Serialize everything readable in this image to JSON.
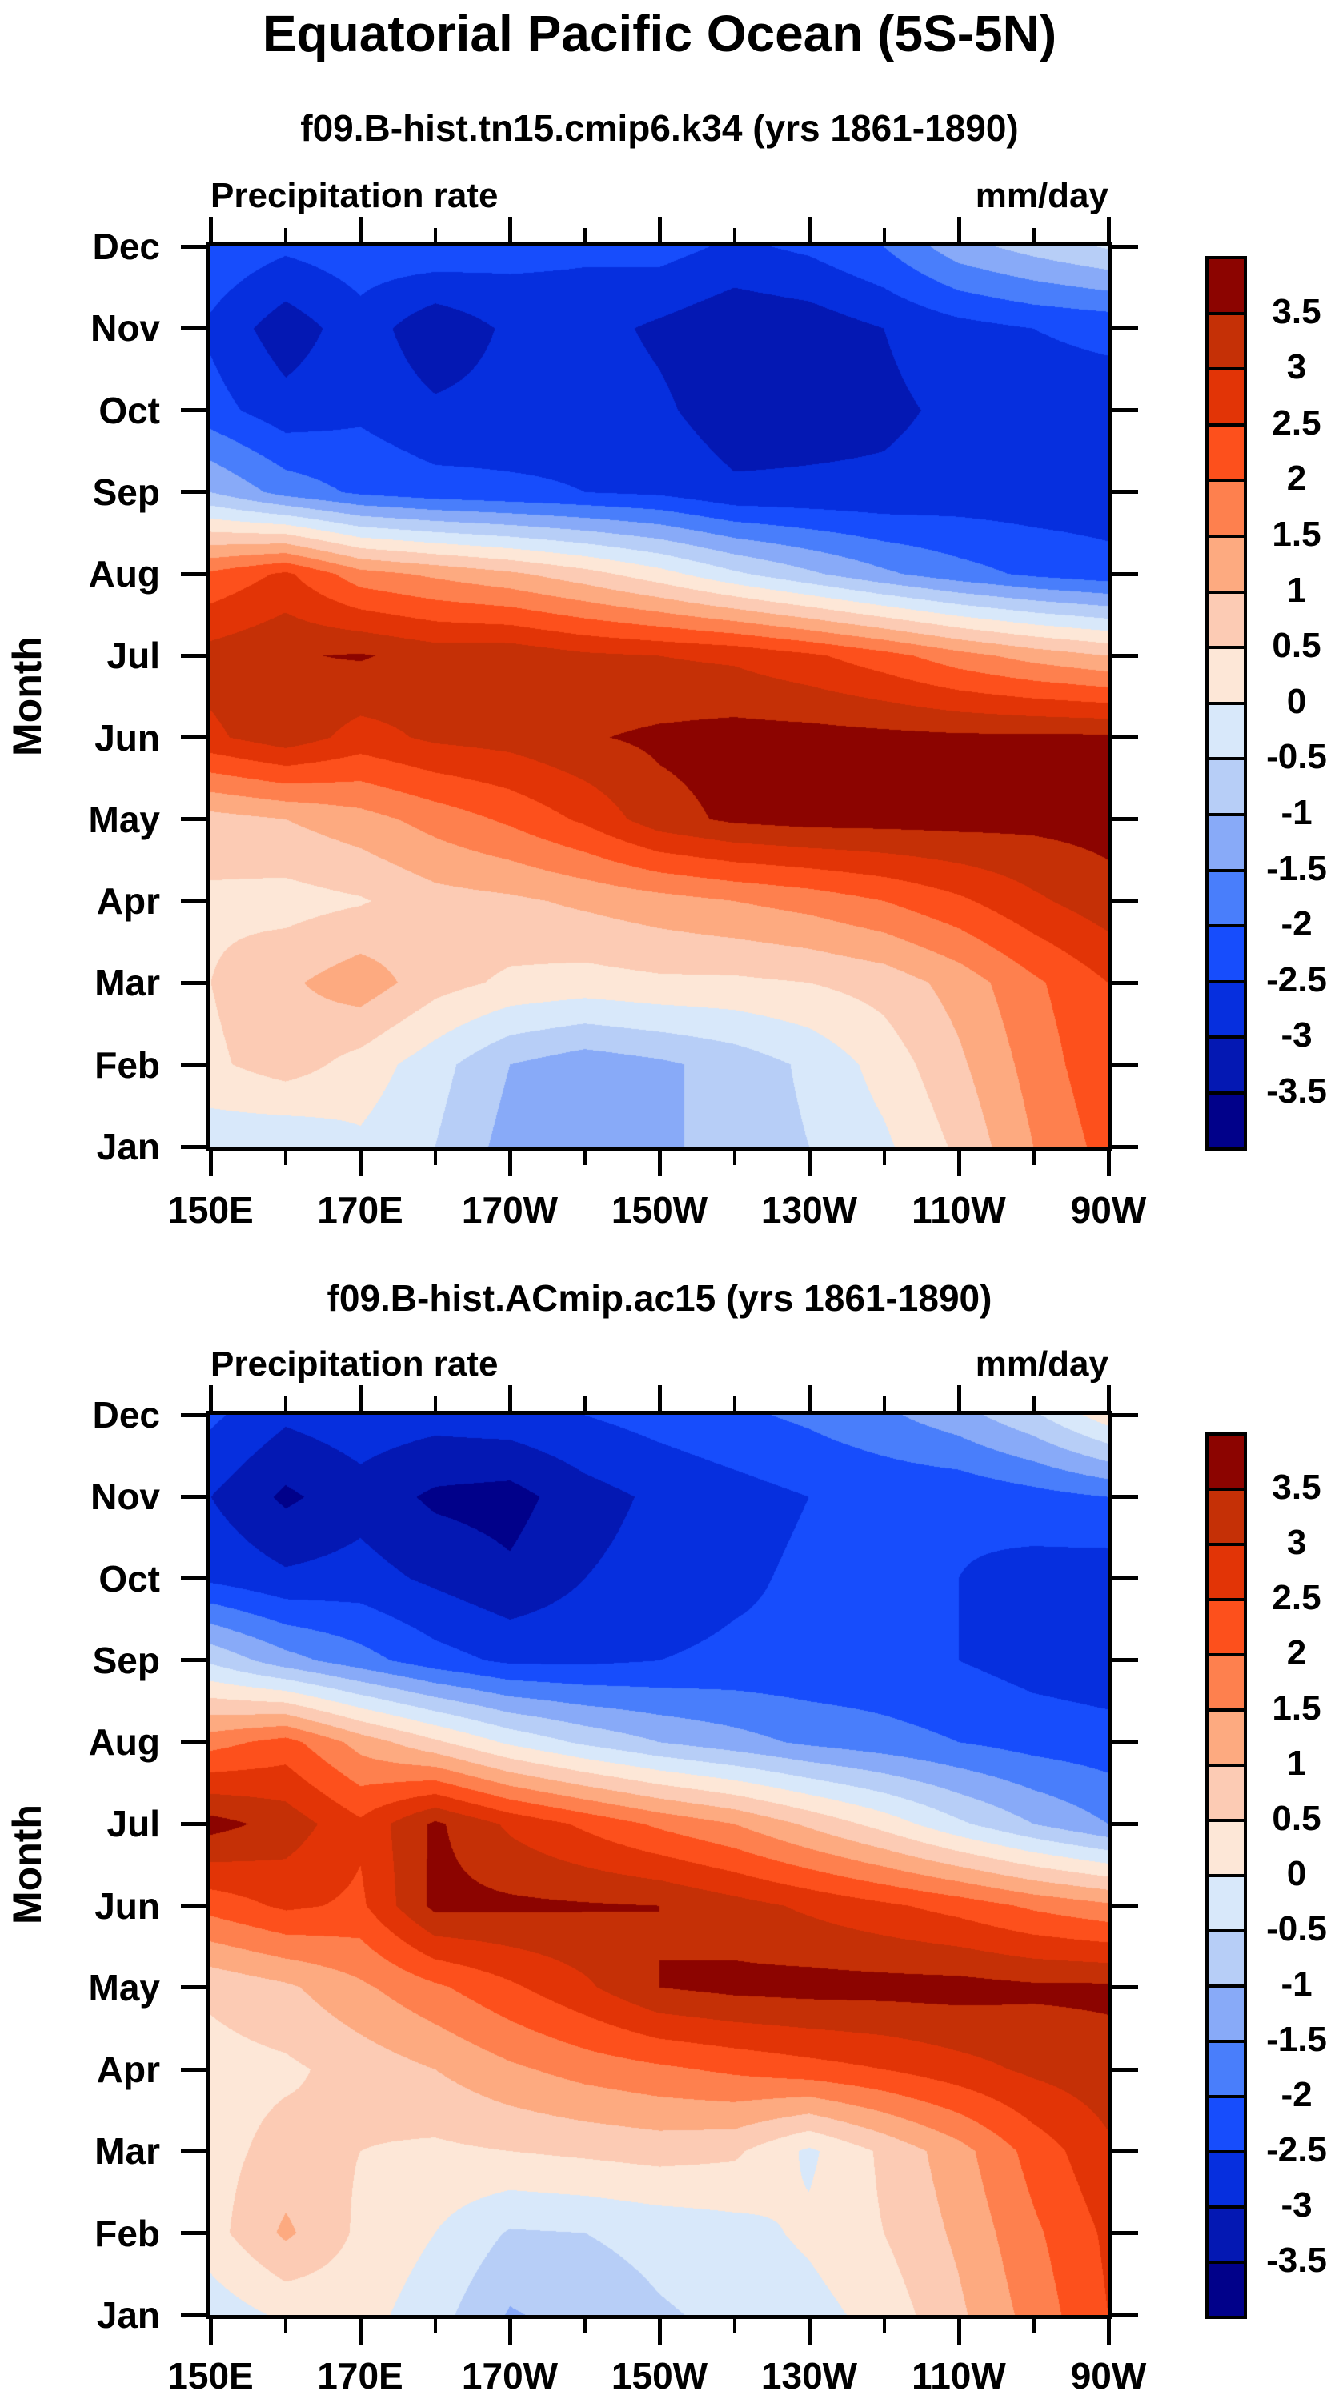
{
  "header": {
    "main_title": "Equatorial Pacific Ocean (5S-5N)"
  },
  "panels": [
    {
      "title": "f09.B-hist.tn15.cmip6.k34 (yrs 1861-1890)",
      "left_label": "Precipitation rate",
      "right_label": "mm/day",
      "y_axis_label": "Month",
      "x_tick_labels": [
        "150E",
        "170E",
        "170W",
        "150W",
        "130W",
        "110W",
        "90W"
      ],
      "y_tick_labels": [
        "Dec",
        "Nov",
        "Oct",
        "Sep",
        "Aug",
        "Jul",
        "Jun",
        "May",
        "Apr",
        "Mar",
        "Feb",
        "Jan"
      ]
    },
    {
      "title": "f09.B-hist.ACmip.ac15 (yrs 1861-1890)",
      "left_label": "Precipitation rate",
      "right_label": "mm/day",
      "y_axis_label": "Month",
      "x_tick_labels": [
        "150E",
        "170E",
        "170W",
        "150W",
        "130W",
        "110W",
        "90W"
      ],
      "y_tick_labels": [
        "Dec",
        "Nov",
        "Oct",
        "Sep",
        "Aug",
        "Jul",
        "Jun",
        "May",
        "Apr",
        "Mar",
        "Feb",
        "Jan"
      ]
    }
  ],
  "colorbar": {
    "labels": [
      "3.5",
      "3",
      "2.5",
      "2",
      "1.5",
      "1",
      "0.5",
      "0",
      "-0.5",
      "-1",
      "-1.5",
      "-2",
      "-2.5",
      "-3",
      "-3.5"
    ],
    "colors_top_to_bottom": [
      "#8c0400",
      "#c53006",
      "#e23406",
      "#fd501c",
      "#fe804e",
      "#fdaa80",
      "#fccbb4",
      "#fde7d7",
      "#d8e8fa",
      "#b7cef7",
      "#88aaf8",
      "#497efb",
      "#174dfc",
      "#062fde",
      "#0418b3",
      "#01018a"
    ],
    "outline_color": "#000000"
  },
  "chart_data": [
    {
      "type": "heatmap",
      "title": "f09.B-hist.tn15.cmip6.k34 (yrs 1861-1890)",
      "variable": "Precipitation rate",
      "units": "mm/day",
      "xlabel_ticks": [
        "150E",
        "170E",
        "170W",
        "150W",
        "130W",
        "110W",
        "90W"
      ],
      "x_grid_lons": [
        "150E",
        "160E",
        "170E",
        "180",
        "170W",
        "160W",
        "150W",
        "140W",
        "130W",
        "120W",
        "110W",
        "100W",
        "90W"
      ],
      "y_categories_top_to_bottom": [
        "Dec",
        "Nov",
        "Oct",
        "Sep",
        "Aug",
        "Jul",
        "Jun",
        "May",
        "Apr",
        "Mar",
        "Feb",
        "Jan"
      ],
      "contour_levels": [
        -3.5,
        -3,
        -2.5,
        -2,
        -1.5,
        -1,
        -0.5,
        0,
        0.5,
        1,
        1.5,
        2,
        2.5,
        3,
        3.5
      ],
      "grid_rows_top_to_bottom": [
        [
          -2.1,
          -2.4,
          -2.2,
          -2.1,
          -2.3,
          -2.4,
          -2.3,
          -2.6,
          -2.4,
          -2.0,
          -1.2,
          -0.8,
          -0.45
        ],
        [
          -2.6,
          -3.3,
          -2.7,
          -3.4,
          -2.9,
          -2.8,
          -3.1,
          -3.4,
          -3.3,
          -3.0,
          -2.7,
          -2.5,
          -2.4
        ],
        [
          -2.3,
          -2.8,
          -2.6,
          -2.9,
          -2.8,
          -2.7,
          -2.9,
          -3.3,
          -3.2,
          -3.1,
          -2.9,
          -2.7,
          -2.7
        ],
        [
          -1.0,
          -1.7,
          -2.1,
          -2.3,
          -2.4,
          -2.5,
          -2.6,
          -2.9,
          -2.9,
          -2.9,
          -2.8,
          -2.8,
          -2.8
        ],
        [
          2.1,
          2.6,
          1.7,
          1.4,
          1.1,
          0.7,
          0.2,
          -0.4,
          -0.9,
          -1.4,
          -1.8,
          -2.1,
          -2.3
        ],
        [
          3.2,
          3.45,
          3.55,
          3.3,
          3.35,
          3.1,
          3.0,
          2.9,
          2.6,
          2.2,
          1.7,
          1.3,
          1.0
        ],
        [
          2.9,
          3.3,
          2.8,
          3.1,
          3.2,
          3.45,
          3.6,
          3.7,
          3.7,
          3.65,
          3.6,
          3.6,
          3.6
        ],
        [
          0.8,
          1.0,
          1.3,
          1.7,
          2.1,
          2.6,
          3.3,
          3.6,
          3.7,
          3.7,
          3.7,
          3.65,
          3.7
        ],
        [
          0.4,
          0.3,
          0.45,
          0.8,
          0.9,
          1.1,
          1.3,
          1.5,
          1.7,
          2.0,
          2.4,
          2.9,
          3.3
        ],
        [
          0.5,
          0.9,
          1.3,
          0.7,
          0.4,
          0.3,
          0.4,
          0.4,
          0.5,
          0.7,
          1.2,
          1.9,
          2.5
        ],
        [
          0.4,
          0.75,
          0.3,
          -0.3,
          -1.0,
          -1.3,
          -1.1,
          -0.8,
          -0.4,
          0.2,
          0.9,
          1.7,
          2.4
        ],
        [
          -0.35,
          -0.45,
          -0.1,
          -0.5,
          -1.2,
          -1.4,
          -1.1,
          -0.8,
          -0.5,
          -0.1,
          0.6,
          1.5,
          2.2
        ]
      ]
    },
    {
      "type": "heatmap",
      "title": "f09.B-hist.ACmip.ac15 (yrs 1861-1890)",
      "variable": "Precipitation rate",
      "units": "mm/day",
      "xlabel_ticks": [
        "150E",
        "170E",
        "170W",
        "150W",
        "130W",
        "110W",
        "90W"
      ],
      "x_grid_lons": [
        "150E",
        "160E",
        "170E",
        "180",
        "170W",
        "160W",
        "150W",
        "140W",
        "130W",
        "120W",
        "110W",
        "100W",
        "90W"
      ],
      "y_categories_top_to_bottom": [
        "Dec",
        "Nov",
        "Oct",
        "Sep",
        "Aug",
        "Jul",
        "Jun",
        "May",
        "Apr",
        "Mar",
        "Feb",
        "Jan"
      ],
      "contour_levels": [
        -3.5,
        -3,
        -2.5,
        -2,
        -1.5,
        -1,
        -0.5,
        0,
        0.5,
        1,
        1.5,
        2,
        2.5,
        3,
        3.5
      ],
      "grid_rows_top_to_bottom": [
        [
          -2.4,
          -2.9,
          -2.7,
          -2.8,
          -2.7,
          -2.5,
          -2.3,
          -2.1,
          -1.9,
          -1.6,
          -1.2,
          -0.6,
          0.3
        ],
        [
          -3.0,
          -3.6,
          -3.2,
          -3.6,
          -3.7,
          -3.2,
          -2.9,
          -2.7,
          -2.5,
          -2.4,
          -2.4,
          -2.2,
          -2.0
        ],
        [
          -2.6,
          -2.9,
          -2.8,
          -3.1,
          -3.4,
          -3.0,
          -2.8,
          -2.6,
          -2.4,
          -2.4,
          -2.5,
          -2.7,
          -2.8
        ],
        [
          -0.6,
          -1.3,
          -1.8,
          -2.3,
          -2.6,
          -2.6,
          -2.5,
          -2.4,
          -2.4,
          -2.4,
          -2.5,
          -2.7,
          -2.8
        ],
        [
          1.8,
          2.2,
          1.3,
          0.6,
          -0.1,
          -0.6,
          -1.0,
          -1.3,
          -1.6,
          -1.8,
          -2.0,
          -2.2,
          -2.3
        ],
        [
          3.7,
          3.3,
          2.6,
          3.6,
          2.9,
          2.4,
          1.9,
          1.5,
          0.9,
          0.3,
          -0.4,
          -1.0,
          -1.5
        ],
        [
          2.2,
          2.6,
          2.4,
          3.65,
          3.6,
          3.55,
          3.5,
          3.2,
          2.9,
          2.6,
          2.3,
          1.9,
          1.6
        ],
        [
          0.6,
          0.9,
          1.4,
          1.9,
          2.4,
          2.9,
          3.5,
          3.65,
          3.7,
          3.7,
          3.7,
          3.6,
          3.6
        ],
        [
          0.3,
          0.4,
          0.7,
          1.0,
          1.4,
          1.7,
          1.9,
          2.1,
          2.3,
          2.5,
          2.8,
          3.1,
          3.3
        ],
        [
          0.3,
          0.7,
          0.5,
          0.4,
          0.5,
          0.6,
          0.7,
          0.6,
          -0.1,
          0.6,
          1.3,
          2.2,
          2.9
        ],
        [
          0.3,
          1.1,
          0.4,
          0.0,
          -0.55,
          -0.5,
          -0.35,
          -0.2,
          0.1,
          0.5,
          1.1,
          1.9,
          2.6
        ],
        [
          -0.3,
          0.1,
          0.2,
          -0.3,
          -1.05,
          -0.8,
          -0.55,
          -0.4,
          -0.2,
          0.2,
          0.9,
          1.7,
          2.5
        ]
      ]
    }
  ]
}
